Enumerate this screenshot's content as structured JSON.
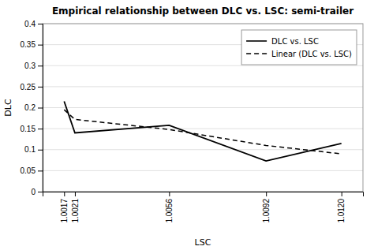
{
  "chart_data": {
    "type": "line",
    "title": "Empirical relationship between DLC vs. LSC: semi-trailer",
    "x_label": "LSC",
    "y_label": "DLC",
    "x": [
      1.0017,
      1.0021,
      1.0056,
      1.0092,
      1.012
    ],
    "series": [
      {
        "name": "DLC vs. LSC",
        "color": "#000000",
        "line_style": "solid",
        "values": [
          0.215,
          0.14,
          0.158,
          0.073,
          0.115
        ]
      },
      {
        "name": "Linear (DLC vs. LSC)",
        "color": "#000000",
        "line_style": "dashed",
        "values": [
          0.195,
          0.172,
          0.148,
          0.11,
          0.09
        ]
      }
    ],
    "xlim": [
      1.0009,
      1.0128
    ],
    "xticks": [
      1.0017,
      1.0021,
      1.0056,
      1.0092,
      {
        "value": 1.012,
        "label": "1.0120"
      }
    ],
    "ylim": [
      0,
      0.4
    ],
    "yticks": [
      0,
      0.05,
      0.1,
      0.15,
      0.2,
      0.25,
      0.3,
      0.35,
      0.4
    ],
    "grid": true,
    "legend": "upper right"
  }
}
